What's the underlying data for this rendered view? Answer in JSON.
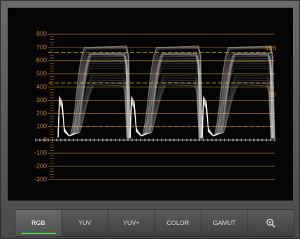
{
  "scale": {
    "labels": [
      "800",
      "700",
      "600",
      "500",
      "400",
      "300",
      "200",
      "100",
      "0",
      "-100",
      "-200",
      "-300"
    ]
  },
  "markers": [
    "100",
    "50"
  ],
  "tabs": [
    "RGB",
    "YUV",
    "YUV+",
    "COLOR",
    "GAMUT"
  ]
}
